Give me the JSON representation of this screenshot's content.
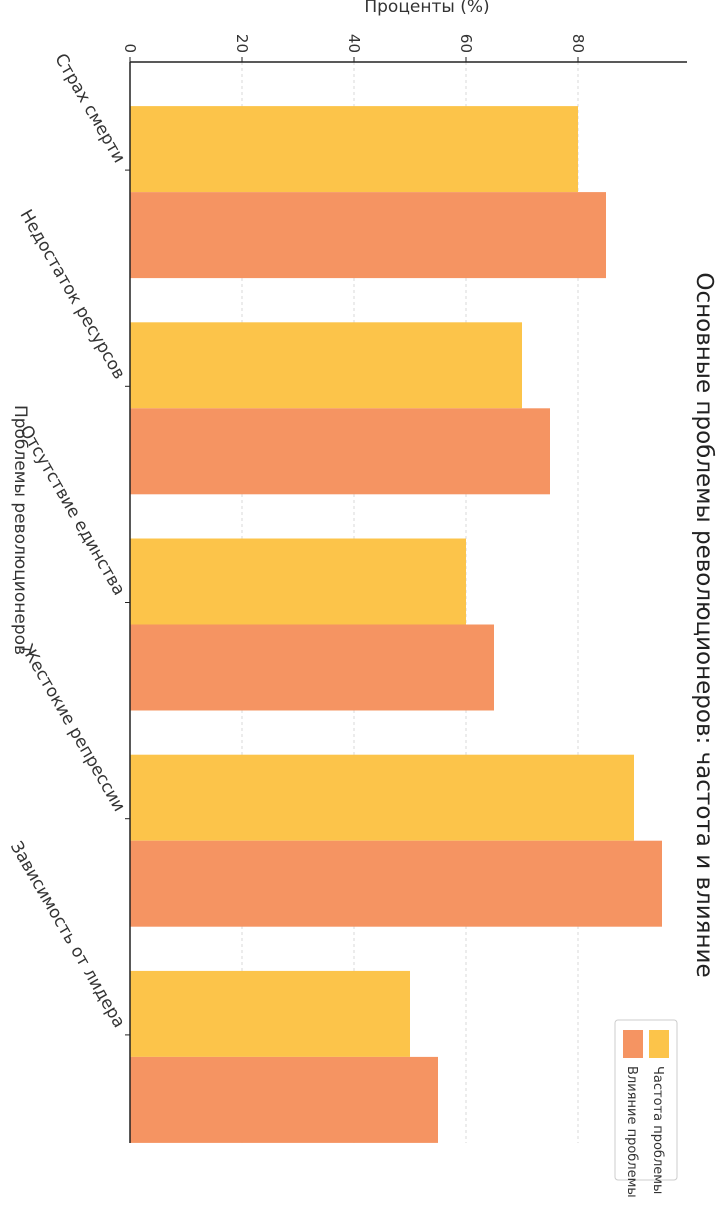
{
  "chart_data": {
    "type": "bar",
    "orientation": "vertical",
    "title": "Основные проблемы революционеров: частота и влияние",
    "xlabel": "Проблемы революционеров",
    "ylabel": "Проценты (%)",
    "categories": [
      "Страх смерти",
      "Недостаток ресурсов",
      "Отсутствие единства",
      "Жестокие репрессии",
      "Зависимость от лидера"
    ],
    "series": [
      {
        "name": "Частота проблемы",
        "color": "#FCC44A",
        "values": [
          80,
          70,
          60,
          90,
          50
        ]
      },
      {
        "name": "Влияние проблемы",
        "color": "#F59462",
        "values": [
          85,
          75,
          65,
          95,
          55
        ]
      }
    ],
    "ylim": [
      0,
      100
    ],
    "yticks": [
      0,
      20,
      40,
      60,
      80
    ],
    "grid": true,
    "legend_position": "top-right"
  }
}
